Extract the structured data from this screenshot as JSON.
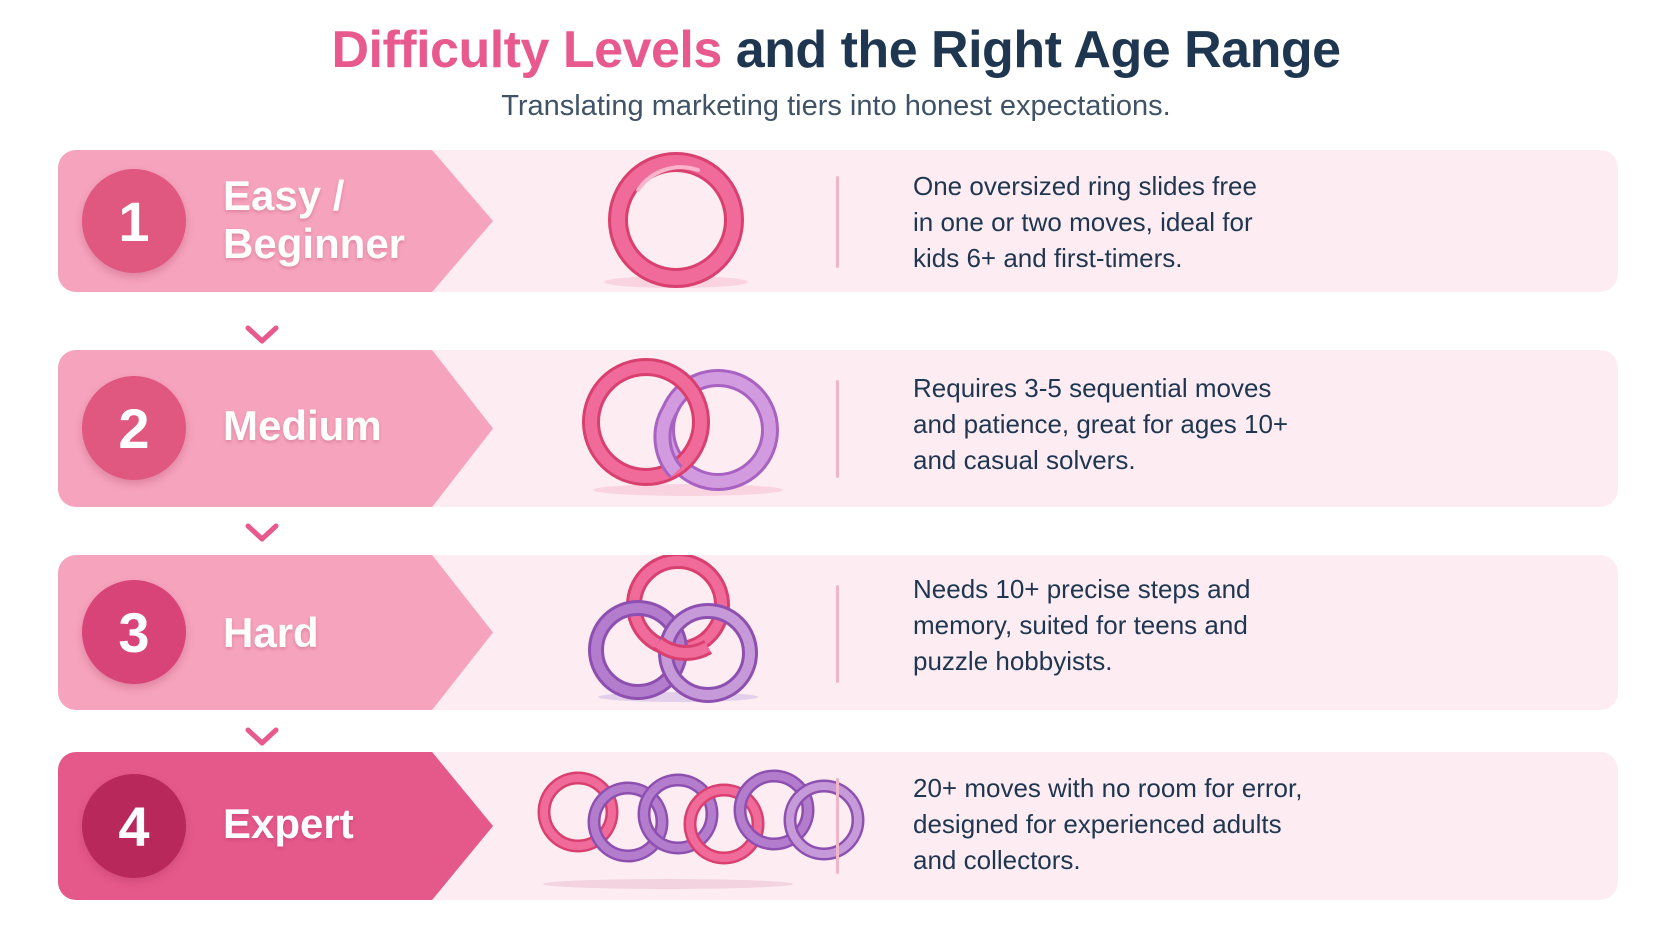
{
  "header": {
    "title_accent": "Difficulty Levels",
    "title_rest": "and the Right Age Range",
    "subtitle": "Translating marketing tiers into honest expectations."
  },
  "colors": {
    "accent": "#e8598e",
    "navy": "#1f3650",
    "row_bg": "#fdedf2",
    "ring_pink": "#ef5f93",
    "ring_purple": "#b37ccc"
  },
  "icons": [
    "single-ring-icon",
    "two-linked-rings-icon",
    "three-linked-rings-icon",
    "ring-chain-icon",
    "chevron-down-icon"
  ],
  "levels": [
    {
      "number": "1",
      "label_lines": [
        "Easy /",
        "Beginner"
      ],
      "description_lines": [
        "One oversized ring slides free",
        "in one or two moves, ideal for",
        "kids 6+ and first-timers."
      ]
    },
    {
      "number": "2",
      "label_lines": [
        "Medium"
      ],
      "description_lines": [
        "Requires 3-5 sequential moves",
        "and patience, great for ages 10+",
        "and casual solvers."
      ]
    },
    {
      "number": "3",
      "label_lines": [
        "Hard"
      ],
      "description_lines": [
        "Needs 10+ precise steps and",
        "memory, suited for teens and",
        "puzzle hobbyists."
      ]
    },
    {
      "number": "4",
      "label_lines": [
        "Expert"
      ],
      "description_lines": [
        "20+ moves with no room for error,",
        "designed for experienced adults",
        "and collectors."
      ]
    }
  ]
}
